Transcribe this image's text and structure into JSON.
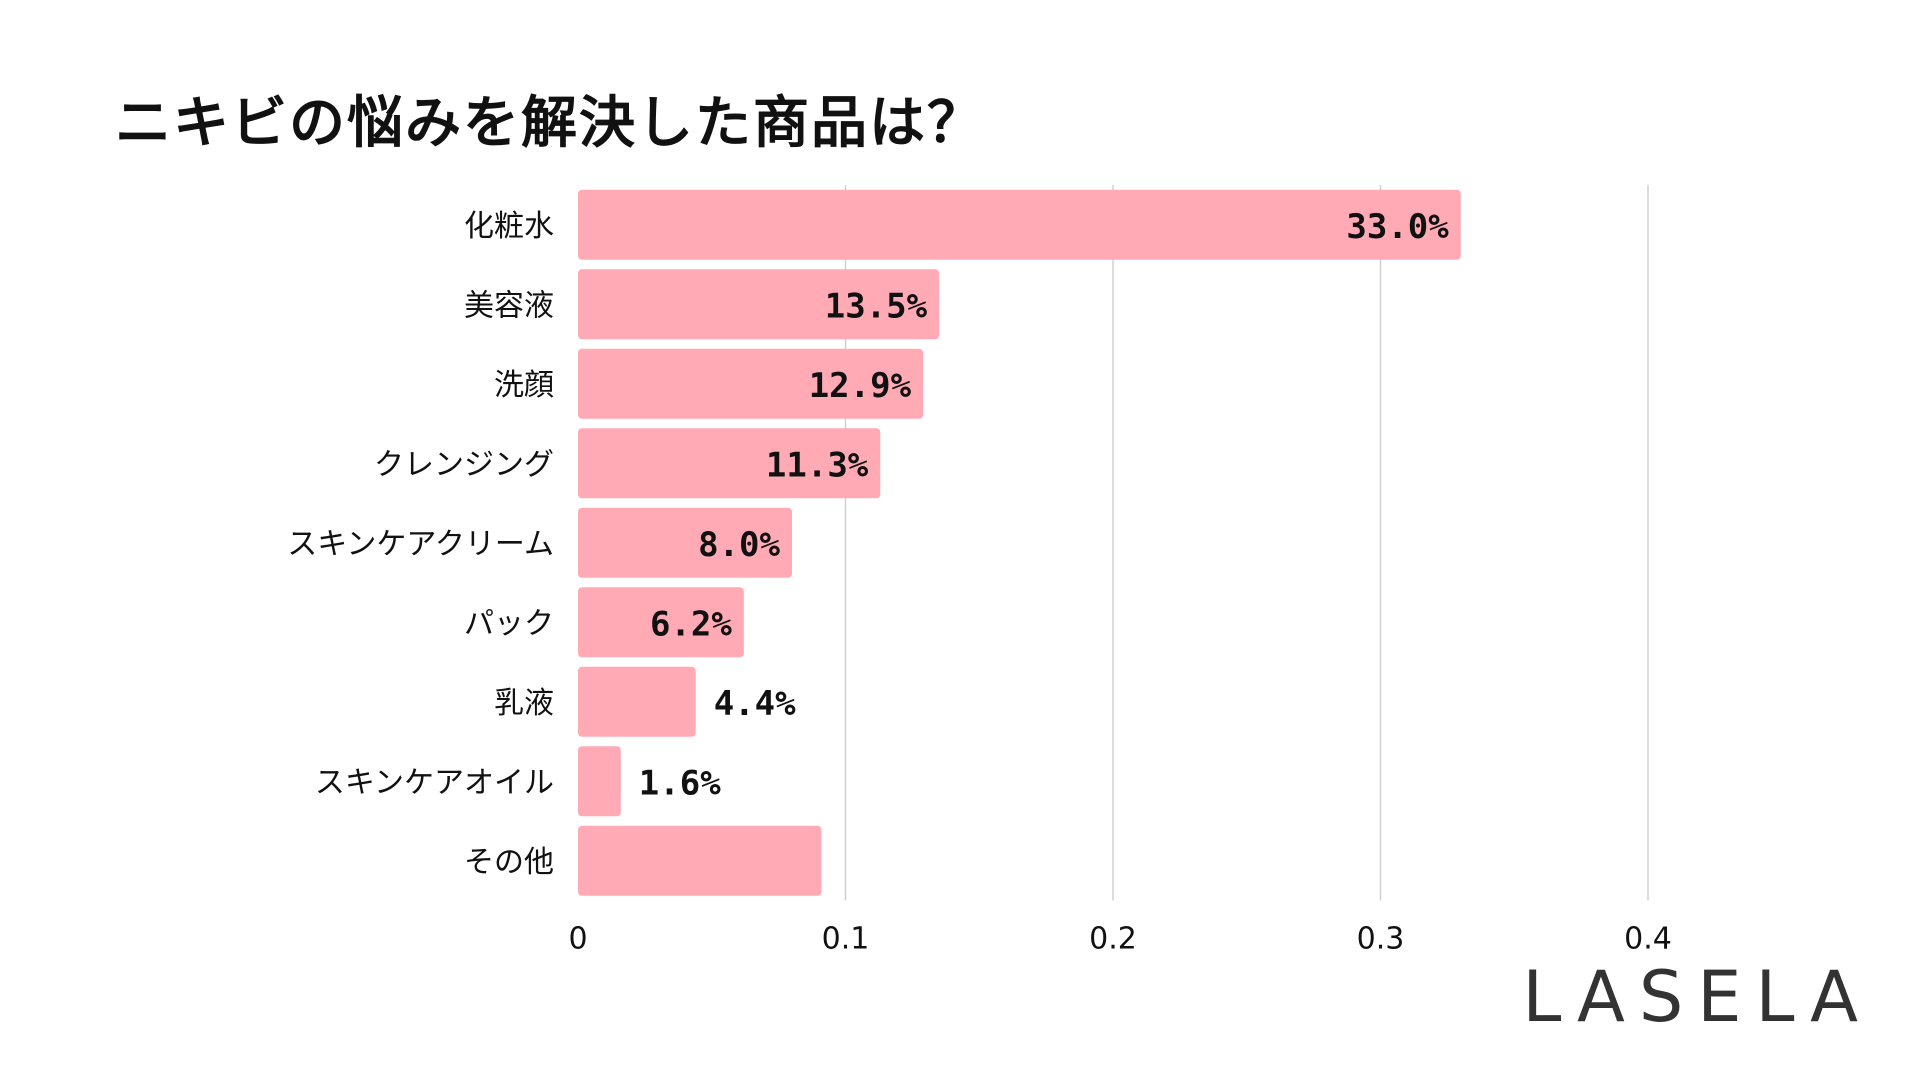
{
  "header": {
    "title": "ニキビの悩みを解決した商品は？"
  },
  "brand": {
    "name": "LASELA"
  },
  "chart_data": {
    "type": "bar",
    "orientation": "horizontal",
    "categories": [
      "化粧水",
      "美容液",
      "洗顔",
      "クレンジング",
      "スキンケアクリーム",
      "パック",
      "乳液",
      "スキンケアオイル",
      "その他"
    ],
    "values": [
      0.33,
      0.135,
      0.129,
      0.113,
      0.08,
      0.062,
      0.044,
      0.016,
      0.091
    ],
    "data_labels": [
      "33.0%",
      "13.5%",
      "12.9%",
      "11.3%",
      "8.0%",
      "6.2%",
      "4.4%",
      "1.6%",
      ""
    ],
    "x_ticks": [
      "0",
      "0.1",
      "0.2",
      "0.3",
      "0.4"
    ],
    "xlim": [
      0,
      0.4
    ],
    "grid": true,
    "bar_color": "#FFAAB5",
    "title": "ニキビの悩みを解決した商品は？",
    "xlabel": "",
    "ylabel": ""
  }
}
